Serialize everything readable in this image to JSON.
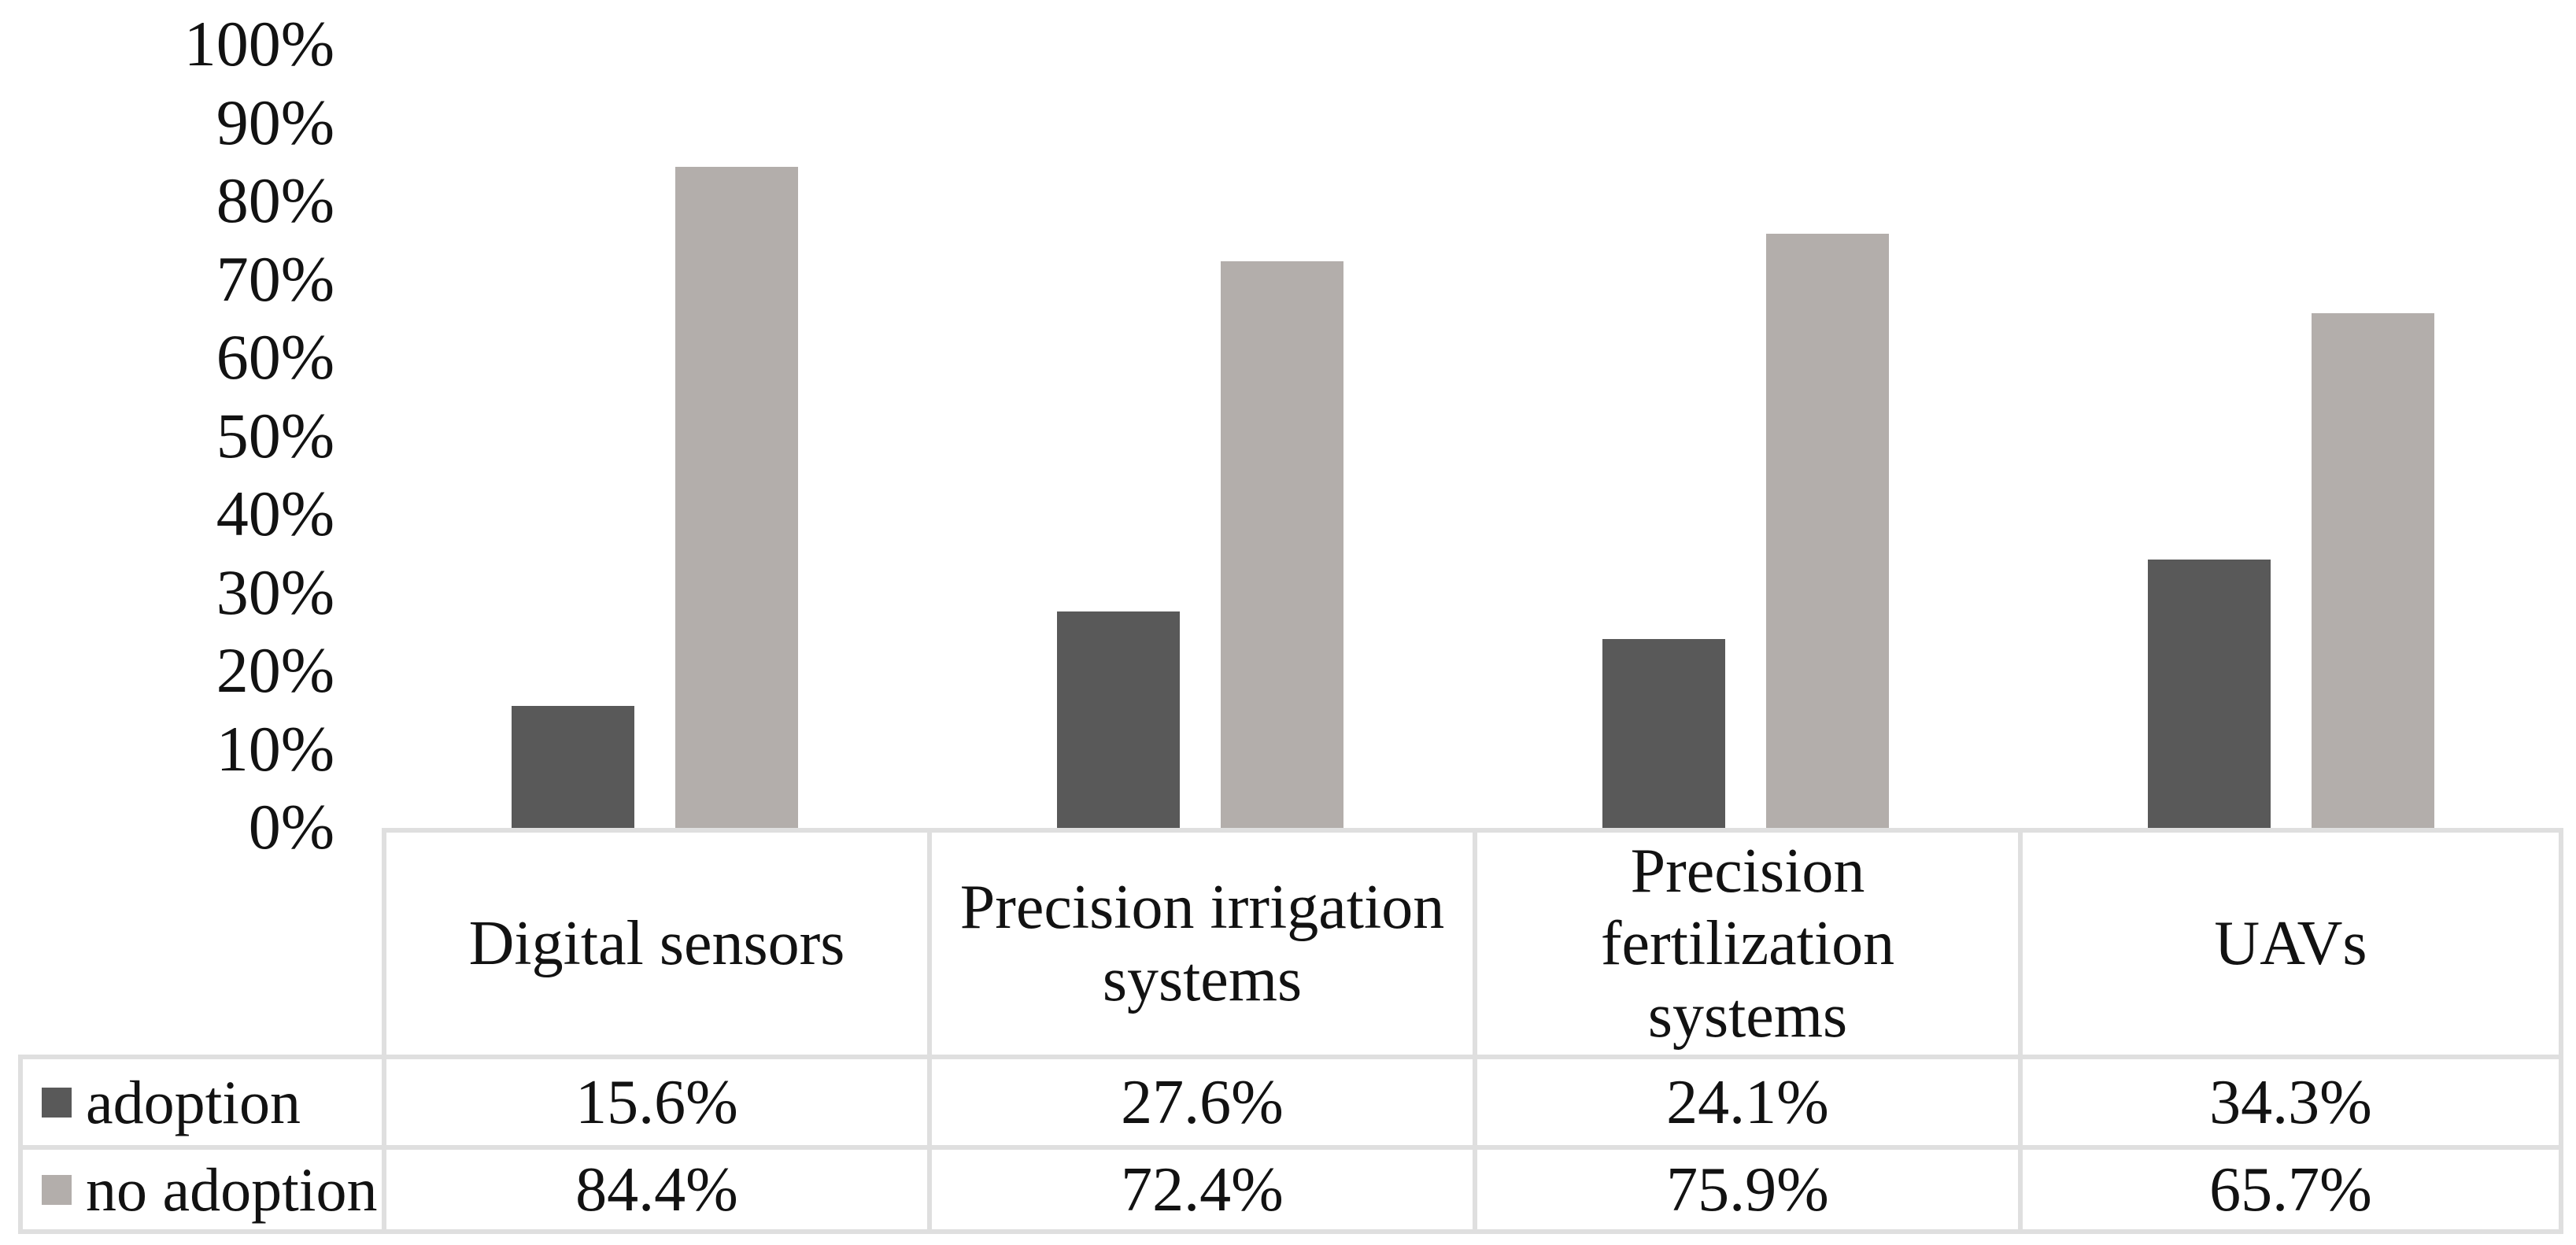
{
  "figure": {
    "background": "#ffffff"
  },
  "chart_data": {
    "type": "bar",
    "title": "",
    "xlabel": "",
    "ylabel": "",
    "categories": [
      "Digital sensors",
      "Precision irrigation\nsystems",
      "Precision\nfertilization\nsystems",
      "UAVs"
    ],
    "series": [
      {
        "name": "adoption",
        "color": "#595959",
        "values": [
          15.6,
          27.6,
          24.1,
          34.3
        ],
        "labels": [
          "15.6%",
          "27.6%",
          "24.1%",
          "34.3%"
        ]
      },
      {
        "name": "no adoption",
        "color": "#b3aeab",
        "values": [
          84.4,
          72.4,
          75.9,
          65.7
        ],
        "labels": [
          "84.4%",
          "72.4%",
          "75.9%",
          "65.7%"
        ]
      }
    ],
    "y_axis": {
      "min": 0,
      "max": 100,
      "step": 10,
      "unit": "%",
      "ticks": [
        "100%",
        "90%",
        "80%",
        "70%",
        "60%",
        "50%",
        "40%",
        "30%",
        "20%",
        "10%",
        "0%"
      ]
    },
    "grid": false,
    "legend_position": "data-table-rows-left",
    "data_table": true,
    "border_color": "#dfdfdf",
    "text_color": "#121212"
  }
}
